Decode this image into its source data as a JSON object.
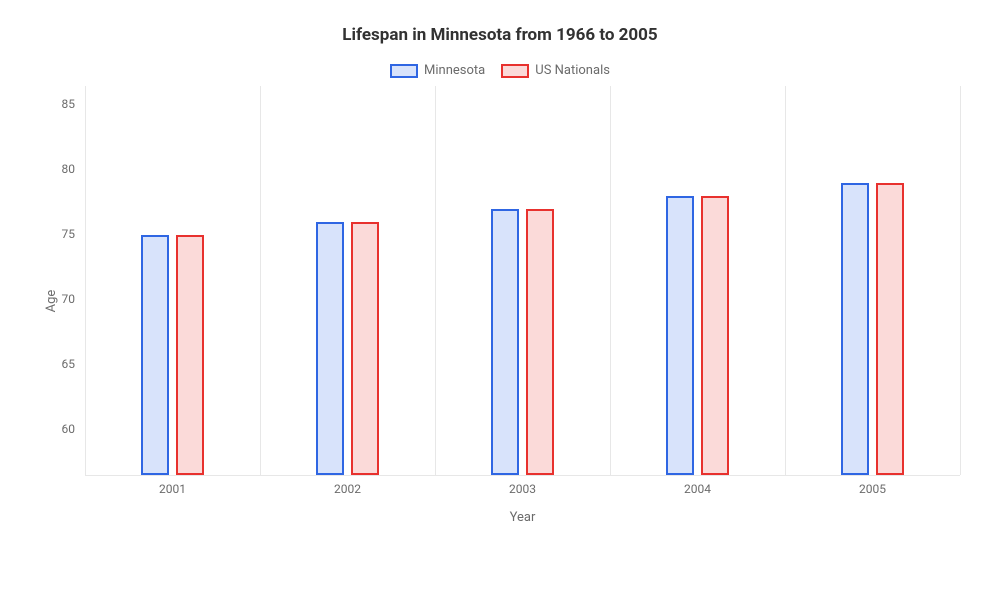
{
  "chart": {
    "type": "bar",
    "title": "Lifespan in Minnesota from 1966 to 2005",
    "title_fontsize": 17,
    "title_color": "#323232",
    "background_color": "#ffffff",
    "grid_color": "#e7e7e7",
    "axis_text_color": "#6b6b6b",
    "legend_text_color": "#6b6b6b",
    "legend_fontsize": 13,
    "tick_fontsize": 12,
    "axis_label_fontsize": 13,
    "x_label": "Year",
    "y_label": "Age",
    "categories": [
      "2001",
      "2002",
      "2003",
      "2004",
      "2005"
    ],
    "y_ticks": [
      60,
      65,
      70,
      75,
      80,
      85
    ],
    "ylim": [
      57.5,
      87.5
    ],
    "bar_width_pct": 3.2,
    "bar_gap_pct": 0.9,
    "group_offsets_pct": [
      10,
      30,
      50,
      70,
      90
    ],
    "series": [
      {
        "name": "Minnesota",
        "border_color": "#2f66e3",
        "fill_color": "#d8e3fb",
        "values": [
          76,
          77,
          78,
          79,
          80
        ]
      },
      {
        "name": "US Nationals",
        "border_color": "#e8312e",
        "fill_color": "#fbdad9",
        "values": [
          76,
          77,
          78,
          79,
          80
        ]
      }
    ]
  }
}
